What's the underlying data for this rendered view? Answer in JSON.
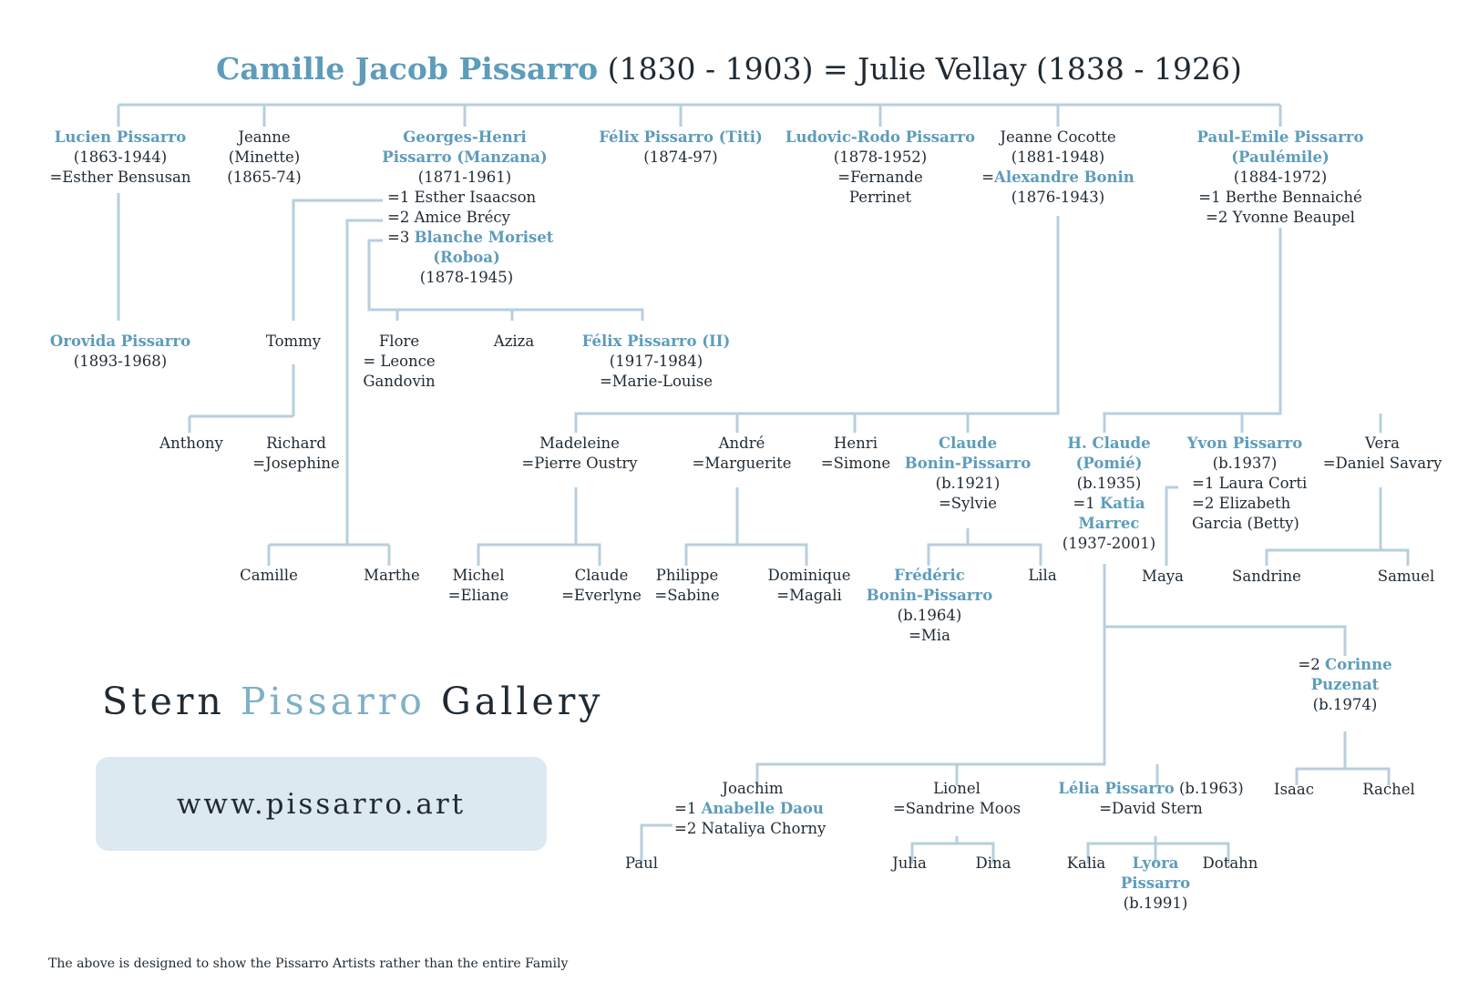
{
  "title": {
    "pissarro_name": "Camille Jacob Pissarro",
    "pissarro_years": "(1830 - 1903)",
    "eq": "=",
    "spouse": "Julie Vellay (1838 - 1926)"
  },
  "colors": {
    "accent": "#5d9cbb",
    "line": "#b7cfdc",
    "box": "#dde9f0",
    "text": "#1f2a33"
  },
  "people": {
    "lucien": [
      "Lucien Pissarro",
      "(1863-1944)",
      "=Esther Bensusan"
    ],
    "jeanne_minette": [
      "Jeanne",
      "(Minette)",
      "(1865-74)"
    ],
    "georges": [
      "Georges-Henri",
      "Pissarro (Manzana)",
      "(1871-1961)"
    ],
    "georges_spouses": [
      "=1 Esther Isaacson",
      "=2 Amice Brécy",
      "=3 ",
      "Blanche Moriset",
      "(Roboa)",
      "(1878-1945)"
    ],
    "felix": [
      "Félix Pissarro (Titi)",
      "(1874-97)"
    ],
    "ludovic": [
      "Ludovic-Rodo Pissarro",
      "(1878-1952)",
      "=Fernande",
      "Perrinet"
    ],
    "jeanne_cocotte": [
      "Jeanne Cocotte",
      "(1881-1948)",
      "=",
      "Alexandre Bonin",
      "(1876-1943)"
    ],
    "paul_emile": [
      "Paul-Emile Pissarro",
      "(Paulémile)",
      "(1884-1972)",
      "=1 Berthe Bennaiché",
      "=2 Yvonne Beaupel"
    ],
    "orovida": [
      "Orovida Pissarro",
      "(1893-1968)"
    ],
    "tommy": [
      "Tommy"
    ],
    "flore": [
      "Flore",
      "= Leonce",
      "Gandovin"
    ],
    "aziza": [
      "Aziza"
    ],
    "felix2": [
      "Félix Pissarro (II)",
      "(1917-1984)",
      "=Marie-Louise"
    ],
    "anthony": [
      "Anthony"
    ],
    "richard": [
      "Richard",
      "=Josephine"
    ],
    "madeleine": [
      "Madeleine",
      "=Pierre Oustry"
    ],
    "andre": [
      "André",
      "=Marguerite"
    ],
    "henri": [
      "Henri",
      "=Simone"
    ],
    "claude_bp": [
      "Claude",
      "Bonin-Pissarro",
      "(b.1921)",
      "=Sylvie"
    ],
    "h_claude": [
      "H. Claude",
      "(Pomié)",
      "(b.1935)",
      "=1 ",
      "Katia",
      "Marrec",
      "(1937-2001)"
    ],
    "yvon": [
      "Yvon Pissarro",
      "(b.1937)",
      "=1 Laura Corti",
      "=2 Elizabeth",
      "Garcia (Betty)"
    ],
    "vera": [
      "Vera",
      "=Daniel Savary"
    ],
    "camille": [
      "Camille"
    ],
    "marthe": [
      "Marthe"
    ],
    "michel": [
      "Michel",
      "=Eliane"
    ],
    "claude_ev": [
      "Claude",
      "=Everlyne"
    ],
    "philippe": [
      "Philippe",
      "=Sabine"
    ],
    "dominique": [
      "Dominique",
      "=Magali"
    ],
    "frederic": [
      "Frédéric",
      "Bonin-Pissarro",
      "(b.1964)",
      "=Mia"
    ],
    "lila": [
      "Lila"
    ],
    "maya": [
      "Maya"
    ],
    "sandrine": [
      "Sandrine"
    ],
    "samuel": [
      "Samuel"
    ],
    "corinne": [
      "=2 ",
      "Corinne",
      "Puzenat",
      "(b.1974)"
    ],
    "joachim": [
      "Joachim",
      "=1 ",
      "Anabelle Daou",
      "=2 Nataliya Chorny"
    ],
    "lionel": [
      "Lionel",
      "=Sandrine Moos"
    ],
    "lelia": [
      "Lélia Pissarro",
      " (b.1963)",
      "=David Stern"
    ],
    "isaac": [
      "Isaac"
    ],
    "rachel": [
      "Rachel"
    ],
    "paul": [
      "Paul"
    ],
    "julia": [
      "Julia"
    ],
    "dina": [
      "Dina"
    ],
    "kalia": [
      "Kalia"
    ],
    "lyora": [
      "Lyora",
      "Pissarro",
      "(b.1991)"
    ],
    "dotahn": [
      "Dotahn"
    ]
  },
  "gallery": {
    "part1": "Stern ",
    "part2": "Pissarro",
    "part3": " Gallery"
  },
  "url": "www.pissarro.art",
  "footnote": "The above is designed to show the Pissarro Artists rather than the entire Family"
}
